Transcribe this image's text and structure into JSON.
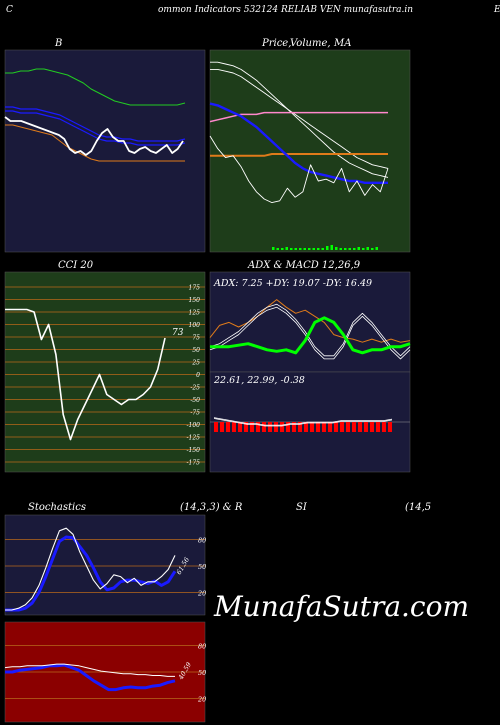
{
  "header": {
    "left_letter": "C",
    "title": "ommon  Indicators 532124  RELIAB VEN  munafasutra.in",
    "right_letter": "E"
  },
  "watermark": "MunafaSutra.com",
  "colors": {
    "panel_navy": "#1a1a3a",
    "panel_green": "#1e3d1a",
    "panel_red": "#8b0000",
    "grid_orange": "#b8681a",
    "white": "#ffffff",
    "blue": "#1a1aff",
    "green": "#22cc22",
    "orange": "#e07b1a",
    "pink": "#ff88cc",
    "bright_green": "#00ff00",
    "red": "#ff0000"
  },
  "chart_data": [
    {
      "type": "line",
      "panel": "bollinger",
      "title": "B",
      "series": [
        {
          "color": "green",
          "values": [
            56,
            56,
            57,
            57,
            58,
            58,
            57,
            56,
            55,
            53,
            51,
            48,
            46,
            44,
            42,
            41,
            40,
            40,
            40,
            40,
            40,
            40,
            40,
            41
          ]
        },
        {
          "color": "blue",
          "values": [
            39,
            39,
            38,
            38,
            38,
            37,
            36,
            35,
            33,
            31,
            29,
            27,
            25,
            24,
            24,
            23,
            23,
            22,
            22,
            22,
            22,
            22,
            22,
            23
          ]
        },
        {
          "color": "blue",
          "values": [
            37,
            37,
            36,
            36,
            36,
            35,
            34,
            33,
            31,
            29,
            27,
            25,
            23,
            22,
            22,
            21,
            21,
            20,
            20,
            20,
            20,
            20,
            20,
            21
          ]
        },
        {
          "color": "orange",
          "values": [
            30,
            30,
            29,
            28,
            27,
            26,
            25,
            22,
            19,
            17,
            15,
            13,
            12,
            12,
            12,
            12,
            12,
            12,
            12,
            12,
            12,
            12,
            12,
            12
          ]
        },
        {
          "color": "white",
          "values": [
            34,
            32,
            32,
            32,
            31,
            30,
            29,
            28,
            27,
            26,
            25,
            23,
            18,
            16,
            17,
            15,
            17,
            22,
            26,
            28,
            24,
            22,
            22,
            17,
            16,
            18,
            19,
            17,
            16,
            18,
            20,
            16,
            18,
            22
          ]
        }
      ]
    },
    {
      "type": "line",
      "panel": "price_ma",
      "title": "Price,  Volume, MA",
      "overlay_titles": [
        "Price,",
        "Volume,",
        "MA"
      ],
      "series": [
        {
          "color": "white",
          "values": [
            96,
            96,
            95,
            94,
            92,
            89,
            86,
            82,
            78,
            74,
            70,
            66,
            62,
            58,
            54,
            50,
            46,
            43,
            40,
            38,
            36,
            34,
            33,
            32
          ]
        },
        {
          "color": "white",
          "values": [
            92,
            92,
            91,
            90,
            88,
            85,
            82,
            79,
            76,
            73,
            70,
            67,
            64,
            61,
            58,
            55,
            52,
            49,
            46,
            43,
            41,
            39,
            38,
            37
          ]
        },
        {
          "color": "pink",
          "values": [
            63,
            64,
            65,
            66,
            67,
            67,
            67,
            68,
            68,
            68,
            68,
            68,
            68,
            68,
            68,
            68,
            68,
            68,
            68,
            68,
            68,
            68,
            68,
            68
          ]
        },
        {
          "color": "orange",
          "values": [
            44,
            44,
            44,
            44,
            44,
            44,
            44,
            44,
            45,
            45,
            45,
            45,
            45,
            45,
            45,
            45,
            45,
            45,
            45,
            45,
            45,
            45,
            45,
            45
          ]
        },
        {
          "color": "blue",
          "values": [
            73,
            72,
            70,
            68,
            66,
            63,
            60,
            56,
            52,
            48,
            44,
            40,
            37,
            35,
            34,
            33,
            32,
            31,
            30,
            30,
            29,
            29,
            29,
            29
          ]
        },
        {
          "color": "white",
          "values": [
            55,
            48,
            43,
            44,
            38,
            30,
            24,
            20,
            18,
            19,
            26,
            21,
            24,
            39,
            30,
            31,
            29,
            37,
            24,
            30,
            22,
            28,
            24,
            37
          ]
        }
      ],
      "volume": [
        3,
        2,
        2,
        3,
        2,
        2,
        2,
        2,
        2,
        2,
        2,
        2,
        4,
        5,
        3,
        2,
        2,
        2,
        2,
        3,
        2,
        3,
        2,
        3
      ]
    },
    {
      "type": "line",
      "panel": "cci",
      "title": "CCI 20",
      "ylim": [
        -175,
        175
      ],
      "ticks": [
        "175",
        "150",
        "125",
        "100",
        "75",
        "50",
        "25",
        "0",
        "-25",
        "-50",
        "-75",
        "-100",
        "-125",
        "-150",
        "-175"
      ],
      "value_label": "73",
      "series": [
        {
          "color": "white",
          "values": [
            130,
            130,
            130,
            130,
            125,
            70,
            100,
            40,
            -80,
            -130,
            -90,
            -60,
            -30,
            0,
            -40,
            -50,
            -60,
            -50,
            -50,
            -40,
            -25,
            10,
            73
          ]
        }
      ]
    },
    {
      "type": "line",
      "panel": "adx_macd",
      "title": "ADX  & MACD 12,26,9",
      "adx_label": "ADX: 7.25 +DY: 19.07 -DY: 16.49",
      "macd_label": "22.61,  22.99,  -0.38",
      "series": [
        {
          "color": "orange",
          "values": [
            20,
            28,
            30,
            27,
            30,
            34,
            40,
            45,
            40,
            36,
            38,
            34,
            30,
            22,
            20,
            19,
            17,
            19,
            17,
            19,
            17,
            18
          ]
        },
        {
          "color": "white",
          "values": [
            14,
            16,
            20,
            24,
            30,
            36,
            40,
            42,
            38,
            32,
            24,
            14,
            8,
            8,
            16,
            30,
            36,
            30,
            22,
            14,
            8,
            14
          ]
        },
        {
          "color": "white",
          "values": [
            12,
            14,
            18,
            22,
            28,
            34,
            38,
            40,
            36,
            30,
            22,
            12,
            6,
            6,
            14,
            28,
            34,
            28,
            20,
            12,
            6,
            12
          ]
        },
        {
          "color": "bright_green",
          "values": [
            14,
            14,
            14,
            15,
            16,
            14,
            12,
            11,
            12,
            10,
            18,
            30,
            33,
            30,
            22,
            12,
            10,
            12,
            12,
            14,
            14,
            16
          ]
        },
        {
          "color": "white",
          "values": [
            3,
            2,
            1,
            0,
            -1,
            -1,
            -2,
            -2,
            -2,
            -1,
            -1,
            0,
            0,
            0,
            0,
            1,
            1,
            1,
            1,
            1,
            1,
            2
          ]
        }
      ],
      "macd_hist": [
        3,
        3,
        3,
        3,
        3,
        3,
        3,
        3,
        3,
        3,
        3,
        3,
        3,
        3,
        3,
        3,
        3,
        3,
        3,
        3,
        3,
        3,
        3,
        3,
        3,
        3,
        3,
        3,
        3,
        3
      ]
    },
    {
      "type": "line",
      "panel": "stochastics",
      "title": "Stochastics",
      "params": "(14,3,3) & R",
      "ylim": [
        0,
        100
      ],
      "ticks": [
        "80",
        "50",
        "20"
      ],
      "value_label": "61.56",
      "series": [
        {
          "color": "blue",
          "values": [
            0,
            0,
            0,
            2,
            8,
            20,
            38,
            58,
            78,
            83,
            82,
            72,
            62,
            48,
            32,
            23,
            25,
            32,
            34,
            34,
            32,
            30,
            33,
            28,
            32,
            44
          ]
        },
        {
          "color": "white",
          "values": [
            0,
            0,
            2,
            6,
            14,
            28,
            48,
            70,
            90,
            93,
            86,
            66,
            50,
            34,
            24,
            30,
            40,
            38,
            31,
            36,
            28,
            32,
            32,
            38,
            46,
            62
          ]
        }
      ]
    },
    {
      "type": "line",
      "panel": "rsi",
      "title": "SI",
      "params": "(14,5",
      "ylim": [
        0,
        100
      ],
      "ticks": [
        "80",
        "50",
        "20"
      ],
      "value_label": "40.59",
      "series": [
        {
          "color": "blue",
          "values": [
            50,
            50,
            52,
            53,
            54,
            55,
            57,
            57,
            58,
            55,
            52,
            46,
            40,
            35,
            30,
            30,
            32,
            33,
            32,
            32,
            34,
            35,
            38,
            40
          ]
        },
        {
          "color": "white",
          "values": [
            55,
            56,
            56,
            57,
            57,
            57,
            58,
            59,
            59,
            58,
            57,
            55,
            53,
            51,
            50,
            49,
            48,
            48,
            47,
            47,
            46,
            46,
            45,
            45
          ]
        }
      ]
    }
  ]
}
